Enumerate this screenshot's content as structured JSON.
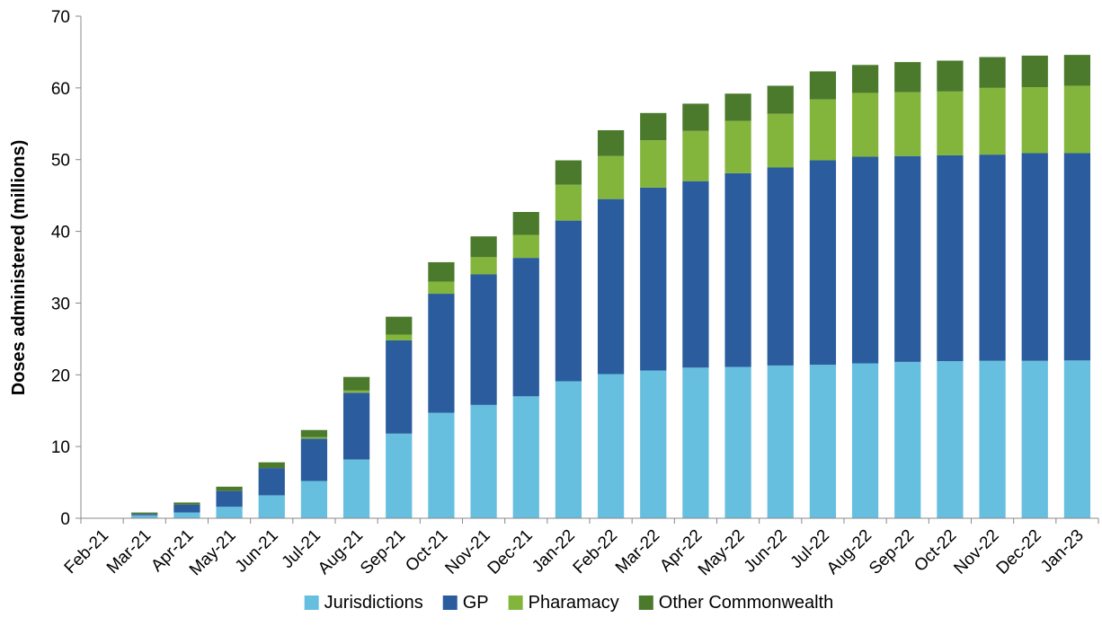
{
  "chart_data": {
    "type": "bar",
    "stacked": true,
    "title": "",
    "xlabel": "",
    "ylabel": "Doses administered (millions)",
    "ylim": [
      0,
      70
    ],
    "yticks": [
      "0",
      "10",
      "20",
      "30",
      "40",
      "50",
      "60",
      "70"
    ],
    "grid": false,
    "legend_position": "bottom",
    "categories": [
      "Feb-21",
      "Mar-21",
      "Apr-21",
      "May-21",
      "Jun-21",
      "Jul-21",
      "Aug-21",
      "Sep-21",
      "Oct-21",
      "Nov-21",
      "Dec-21",
      "Jan-22",
      "Feb-22",
      "Mar-22",
      "Apr-22",
      "May-22",
      "Jun-22",
      "Jul-22",
      "Aug-22",
      "Sep-22",
      "Oct-22",
      "Nov-22",
      "Dec-22",
      "Jan-23"
    ],
    "series": [
      {
        "name": "Jurisdictions",
        "color": "#67bfdf",
        "values": [
          0.05,
          0.4,
          0.8,
          1.6,
          3.2,
          5.2,
          8.2,
          11.8,
          14.7,
          15.8,
          17.0,
          19.1,
          20.1,
          20.6,
          21.0,
          21.1,
          21.3,
          21.4,
          21.6,
          21.8,
          21.9,
          21.95,
          21.95,
          22.0
        ]
      },
      {
        "name": "GP",
        "color": "#2b5c9d",
        "values": [
          0.0,
          0.2,
          1.1,
          2.2,
          3.8,
          5.9,
          9.3,
          13.0,
          16.6,
          18.2,
          19.3,
          22.4,
          24.4,
          25.5,
          26.0,
          27.0,
          27.6,
          28.5,
          28.8,
          28.7,
          28.7,
          28.75,
          28.95,
          28.9
        ]
      },
      {
        "name": "Pharamacy",
        "color": "#83b53c",
        "values": [
          0.0,
          0.0,
          0.0,
          0.0,
          0.0,
          0.2,
          0.3,
          0.8,
          1.7,
          2.4,
          3.2,
          5.0,
          6.0,
          6.6,
          7.0,
          7.3,
          7.5,
          8.5,
          8.9,
          8.9,
          8.9,
          9.3,
          9.2,
          9.4
        ]
      },
      {
        "name": "Other Commonwealth",
        "color": "#4b7a2d",
        "values": [
          0.0,
          0.2,
          0.3,
          0.6,
          0.8,
          1.0,
          1.9,
          2.5,
          2.7,
          2.9,
          3.2,
          3.4,
          3.6,
          3.8,
          3.8,
          3.8,
          3.9,
          3.9,
          3.9,
          4.2,
          4.3,
          4.3,
          4.4,
          4.3
        ]
      }
    ]
  }
}
